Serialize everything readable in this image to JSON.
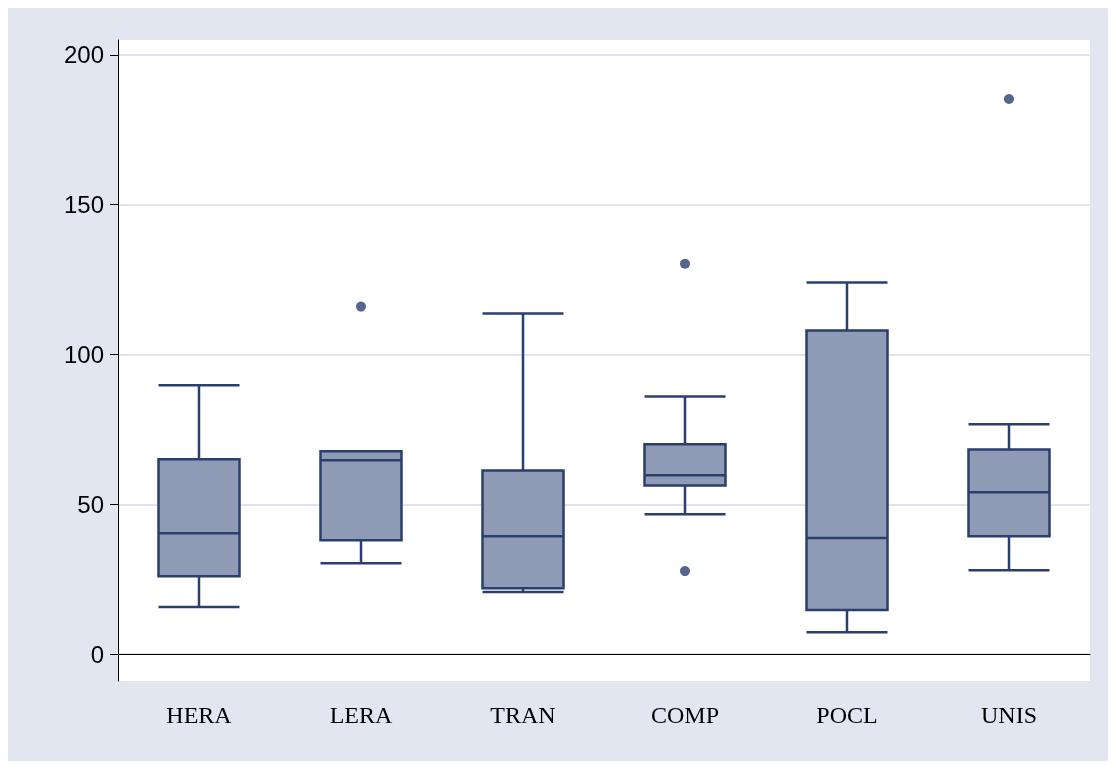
{
  "chart_data": {
    "type": "box",
    "categories": [
      "HERA",
      "LERA",
      "TRAN",
      "COMP",
      "POCL",
      "UNIS"
    ],
    "boxes": [
      {
        "low": 15.7,
        "q1": 26,
        "median": 40.3,
        "q3": 65,
        "high": 89.7
      },
      {
        "low": 30.3,
        "q1": 38,
        "median": 64.7,
        "q3": 67.7,
        "high": 67.7,
        "outliers": [
          116
        ]
      },
      {
        "low": 20.7,
        "q1": 22,
        "median": 39.3,
        "q3": 61.3,
        "high": 113.7
      },
      {
        "low": 46.7,
        "q1": 56.3,
        "median": 59.7,
        "q3": 70,
        "high": 86,
        "outliers": [
          130.3,
          27.7
        ]
      },
      {
        "low": 7.3,
        "q1": 14.7,
        "median": 38.7,
        "q3": 108,
        "high": 124
      },
      {
        "low": 28,
        "q1": 39.3,
        "median": 54,
        "q3": 68.3,
        "high": 76.7,
        "outliers": [
          185.3
        ]
      }
    ],
    "color": "#2b3f6e",
    "ylim": [
      -9,
      205
    ],
    "yticks": [
      0,
      50,
      100,
      150,
      200
    ],
    "grid": "y"
  }
}
